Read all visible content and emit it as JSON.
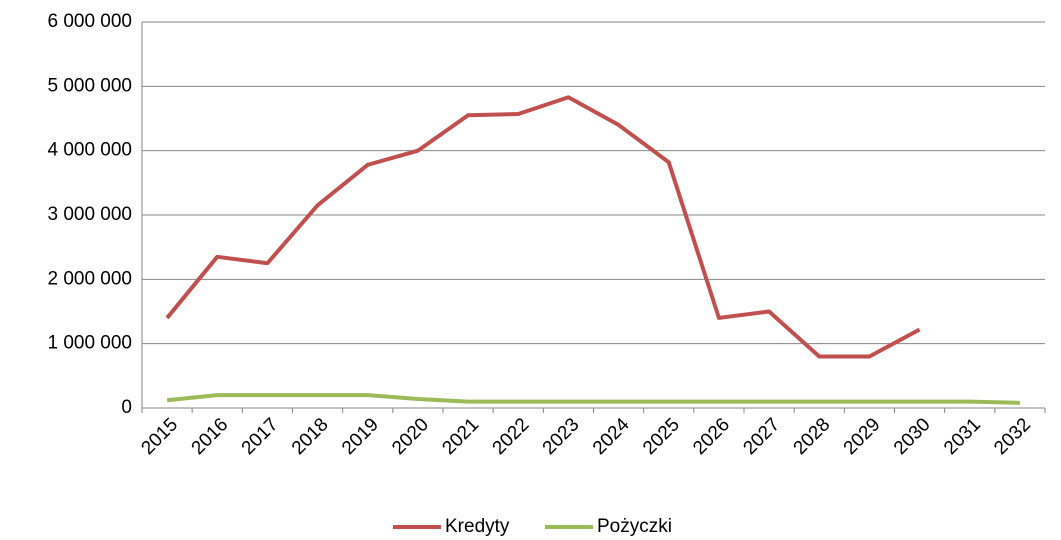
{
  "chart_data": {
    "type": "line",
    "categories": [
      "2015",
      "2016",
      "2017",
      "2018",
      "2019",
      "2020",
      "2021",
      "2022",
      "2023",
      "2024",
      "2025",
      "2026",
      "2027",
      "2028",
      "2029",
      "2030",
      "2031",
      "2032"
    ],
    "series": [
      {
        "name": "Kredyty",
        "color": "#c0504d",
        "values": [
          1400000,
          2350000,
          2250000,
          3150000,
          3780000,
          4000000,
          4550000,
          4570000,
          4830000,
          4400000,
          3820000,
          1400000,
          1500000,
          800000,
          800000,
          1220000,
          null,
          null
        ]
      },
      {
        "name": "Pożyczki",
        "color": "#9bbb59",
        "values": [
          120000,
          200000,
          200000,
          200000,
          200000,
          140000,
          100000,
          100000,
          100000,
          100000,
          100000,
          100000,
          100000,
          100000,
          100000,
          100000,
          100000,
          80000
        ]
      }
    ],
    "ylim": [
      0,
      6000000
    ],
    "yticks": [
      0,
      {
        "value": 1000000,
        "label": "1 000 000"
      },
      {
        "value": 2000000,
        "label": "2 000 000"
      },
      {
        "value": 3000000,
        "label": "3 000 000"
      },
      {
        "value": 4000000,
        "label": "4 000 000"
      },
      {
        "value": 5000000,
        "label": "5 000 000"
      },
      {
        "value": 6000000,
        "label": "6 000 000"
      }
    ],
    "grid": true,
    "legend": "bottom"
  }
}
